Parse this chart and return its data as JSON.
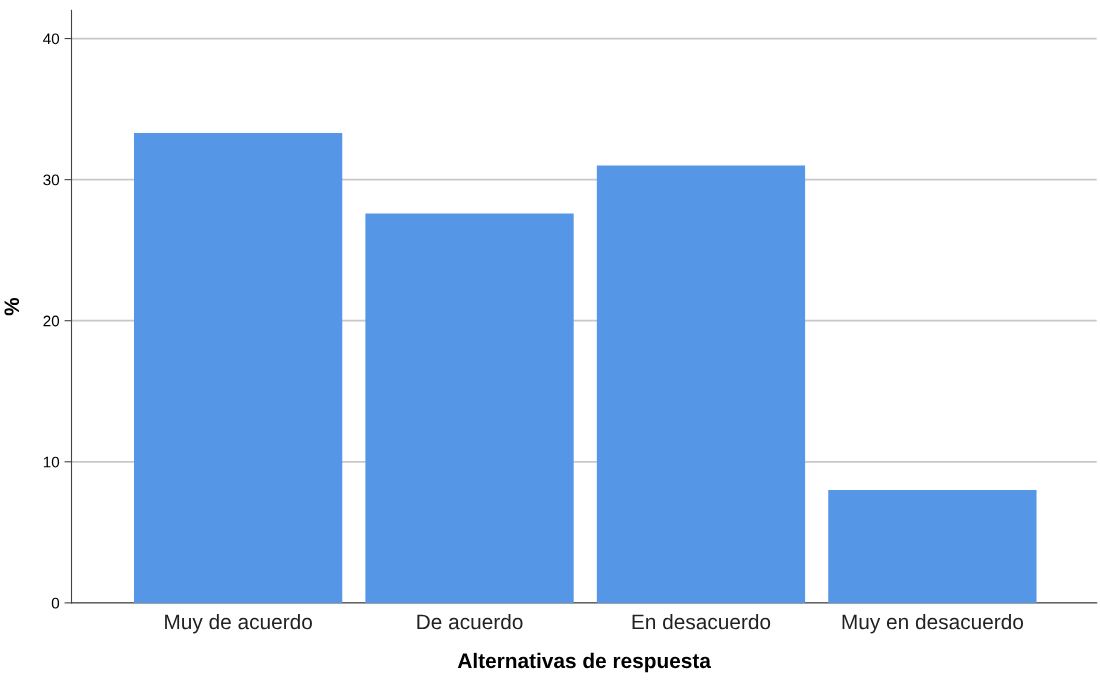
{
  "chart_data": {
    "type": "bar",
    "xlabel": "Alternativas de respuesta",
    "ylabel": "%",
    "categories": [
      "Muy de acuerdo",
      "De acuerdo",
      "En desacuerdo",
      "Muy en desacuerdo"
    ],
    "values": [
      33.3,
      27.6,
      31.0,
      8.0
    ],
    "color": "#5596e6",
    "ylim": [
      0,
      42
    ],
    "yticks": [
      0,
      10,
      20,
      30,
      40
    ],
    "grid": "y",
    "legend": false
  }
}
